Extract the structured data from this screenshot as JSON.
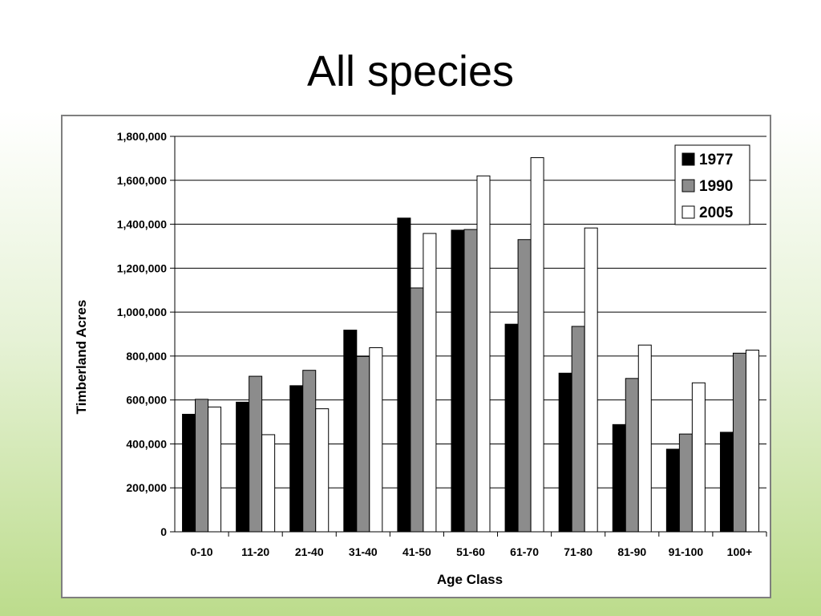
{
  "slide": {
    "title": "All species"
  },
  "chart_data": {
    "type": "bar",
    "title": "",
    "xlabel": "Age Class",
    "ylabel": "Timberland Acres",
    "ylim": [
      0,
      1800000
    ],
    "yticks": [
      "0",
      "200,000",
      "400,000",
      "600,000",
      "800,000",
      "1,000,000",
      "1,200,000",
      "1,400,000",
      "1,600,000",
      "1,800,000"
    ],
    "grid": true,
    "legend_position": "top-right",
    "categories": [
      "0-10",
      "11-20",
      "21-40",
      "31-40",
      "41-50",
      "51-60",
      "61-70",
      "71-80",
      "81-90",
      "91-100",
      "100+"
    ],
    "series": [
      {
        "name": "1977",
        "color": "#000000",
        "values": [
          535000,
          590000,
          665000,
          918000,
          1428000,
          1373000,
          945000,
          722000,
          488000,
          376000,
          453000
        ]
      },
      {
        "name": "1990",
        "color": "#8c8c8c",
        "values": [
          603000,
          708000,
          735000,
          798000,
          1110000,
          1376000,
          1330000,
          935000,
          698000,
          445000,
          813000
        ]
      },
      {
        "name": "2005",
        "color": "#ffffff",
        "values": [
          568000,
          442000,
          560000,
          838000,
          1358000,
          1620000,
          1703000,
          1383000,
          850000,
          678000,
          827000
        ]
      }
    ]
  }
}
